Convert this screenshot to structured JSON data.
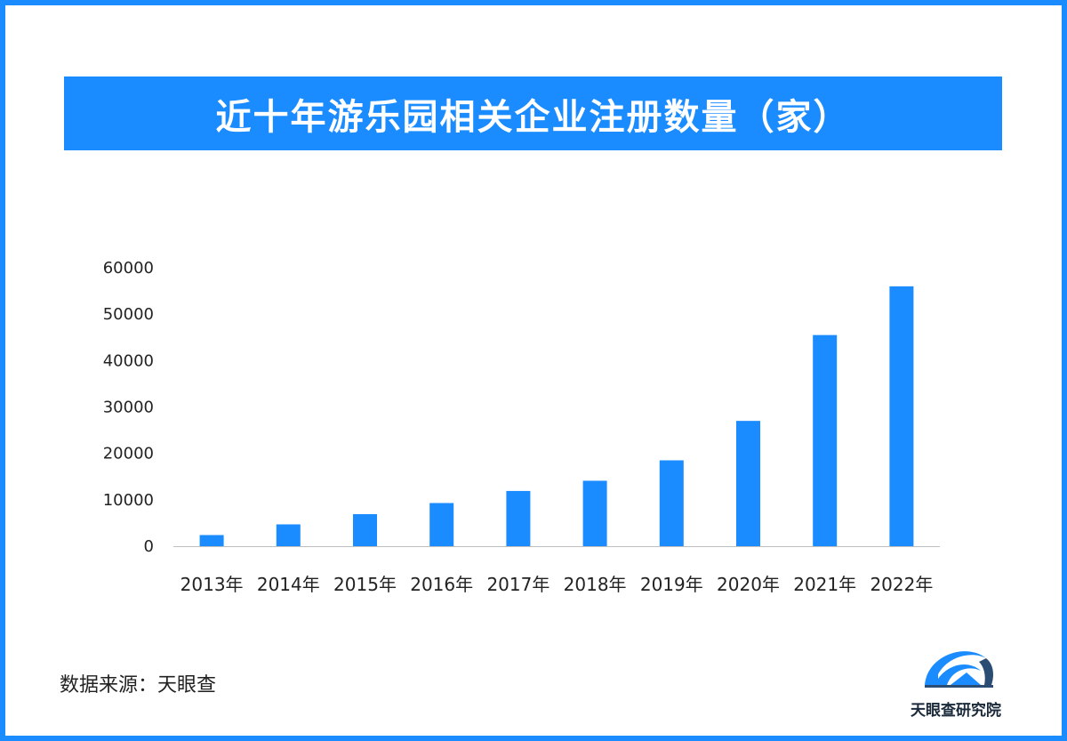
{
  "title": "近十年游乐园相关企业注册数量（家）",
  "source": "数据来源：天眼查",
  "logo_text": "天眼查研究院",
  "colors": {
    "accent": "#1a8cff",
    "bar": "#1a8cff",
    "text": "#222222"
  },
  "chart_data": {
    "type": "bar",
    "categories": [
      "2013年",
      "2014年",
      "2015年",
      "2016年",
      "2017年",
      "2018年",
      "2019年",
      "2020年",
      "2021年",
      "2022年"
    ],
    "values": [
      2400,
      4700,
      6900,
      9300,
      11900,
      14100,
      18500,
      27000,
      45500,
      56000
    ],
    "yticks": [
      "0",
      "10000",
      "20000",
      "30000",
      "40000",
      "50000",
      "60000"
    ],
    "ylim": [
      0,
      60000
    ],
    "grid": false
  }
}
